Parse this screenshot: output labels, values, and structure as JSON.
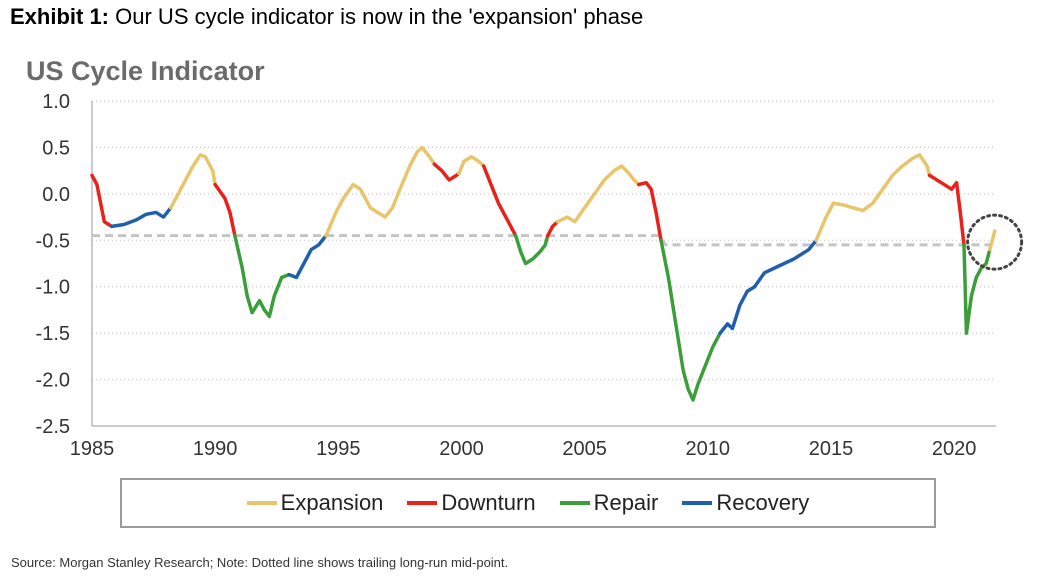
{
  "exhibit": {
    "label": "Exhibit 1:",
    "text": "Our US cycle indicator is now in the 'expansion' phase"
  },
  "source_note": "Source: Morgan Stanley Research; Note: Dotted line shows trailing long-run mid-point.",
  "chart_data": {
    "type": "line",
    "title": "US Cycle Indicator",
    "xlim": [
      1985,
      2021.7
    ],
    "ylim": [
      -2.5,
      1.0
    ],
    "x_ticks": [
      1985,
      1990,
      1995,
      2000,
      2005,
      2010,
      2015,
      2020
    ],
    "x_tick_labels": [
      "1985",
      "1990",
      "1995",
      "2000",
      "2005",
      "2010",
      "2015",
      "2020"
    ],
    "y_ticks": [
      1.0,
      0.5,
      0.0,
      -0.5,
      -1.0,
      -1.5,
      -2.0,
      -2.5
    ],
    "y_tick_labels": [
      "1.0",
      "0.5",
      "0.0",
      "-0.5",
      "-1.0",
      "-1.5",
      "-2.0",
      "-2.5"
    ],
    "grid": "horizontal dotted",
    "legend_position": "bottom",
    "colors": {
      "Expansion": "#e8c56b",
      "Downturn": "#e8221a",
      "Repair": "#3a9e3a",
      "Recovery": "#1f5fae",
      "midpoint": "#c4c4c4",
      "highlight": "#444444"
    },
    "legend": [
      {
        "label": "Expansion",
        "phase": "Expansion"
      },
      {
        "label": "Downturn",
        "phase": "Downturn"
      },
      {
        "label": "Repair",
        "phase": "Repair"
      },
      {
        "label": "Recovery",
        "phase": "Recovery"
      }
    ],
    "series": [
      {
        "phase": "Downturn",
        "points": [
          [
            1985.0,
            0.2
          ],
          [
            1985.2,
            0.1
          ],
          [
            1985.5,
            -0.3
          ],
          [
            1985.8,
            -0.35
          ]
        ]
      },
      {
        "phase": "Recovery",
        "points": [
          [
            1985.8,
            -0.35
          ],
          [
            1986.3,
            -0.33
          ],
          [
            1986.8,
            -0.28
          ],
          [
            1987.2,
            -0.22
          ],
          [
            1987.6,
            -0.2
          ],
          [
            1987.9,
            -0.25
          ],
          [
            1988.2,
            -0.15
          ]
        ]
      },
      {
        "phase": "Expansion",
        "points": [
          [
            1988.2,
            -0.15
          ],
          [
            1988.5,
            0.0
          ],
          [
            1988.8,
            0.15
          ],
          [
            1989.1,
            0.3
          ],
          [
            1989.4,
            0.42
          ],
          [
            1989.6,
            0.4
          ],
          [
            1989.9,
            0.25
          ],
          [
            1990.0,
            0.1
          ]
        ]
      },
      {
        "phase": "Downturn",
        "points": [
          [
            1990.0,
            0.1
          ],
          [
            1990.4,
            -0.05
          ],
          [
            1990.6,
            -0.2
          ],
          [
            1990.8,
            -0.45
          ]
        ]
      },
      {
        "phase": "Repair",
        "points": [
          [
            1990.8,
            -0.45
          ],
          [
            1991.1,
            -0.8
          ],
          [
            1991.3,
            -1.1
          ],
          [
            1991.5,
            -1.28
          ],
          [
            1991.8,
            -1.15
          ],
          [
            1992.0,
            -1.25
          ],
          [
            1992.2,
            -1.32
          ],
          [
            1992.4,
            -1.1
          ],
          [
            1992.7,
            -0.9
          ],
          [
            1993.0,
            -0.87
          ]
        ]
      },
      {
        "phase": "Recovery",
        "points": [
          [
            1993.0,
            -0.87
          ],
          [
            1993.3,
            -0.9
          ],
          [
            1993.6,
            -0.75
          ],
          [
            1993.9,
            -0.6
          ],
          [
            1994.2,
            -0.55
          ],
          [
            1994.5,
            -0.45
          ]
        ]
      },
      {
        "phase": "Expansion",
        "points": [
          [
            1994.5,
            -0.45
          ],
          [
            1994.9,
            -0.2
          ],
          [
            1995.2,
            -0.05
          ],
          [
            1995.6,
            0.1
          ],
          [
            1995.9,
            0.05
          ],
          [
            1996.3,
            -0.15
          ],
          [
            1996.6,
            -0.2
          ],
          [
            1996.9,
            -0.25
          ],
          [
            1997.2,
            -0.15
          ],
          [
            1997.5,
            0.05
          ],
          [
            1997.9,
            0.3
          ],
          [
            1998.2,
            0.45
          ],
          [
            1998.4,
            0.5
          ],
          [
            1998.7,
            0.4
          ],
          [
            1998.9,
            0.32
          ]
        ]
      },
      {
        "phase": "Downturn",
        "points": [
          [
            1998.9,
            0.32
          ],
          [
            1999.2,
            0.25
          ],
          [
            1999.5,
            0.15
          ],
          [
            1999.8,
            0.2
          ],
          [
            1999.9,
            0.22
          ]
        ]
      },
      {
        "phase": "Expansion",
        "points": [
          [
            1999.9,
            0.22
          ],
          [
            2000.1,
            0.35
          ],
          [
            2000.4,
            0.4
          ],
          [
            2000.7,
            0.35
          ],
          [
            2000.9,
            0.3
          ]
        ]
      },
      {
        "phase": "Downturn",
        "points": [
          [
            2000.9,
            0.3
          ],
          [
            2001.2,
            0.1
          ],
          [
            2001.5,
            -0.1
          ],
          [
            2001.8,
            -0.25
          ],
          [
            2002.0,
            -0.35
          ],
          [
            2002.2,
            -0.45
          ]
        ]
      },
      {
        "phase": "Repair",
        "points": [
          [
            2002.2,
            -0.45
          ],
          [
            2002.4,
            -0.62
          ],
          [
            2002.6,
            -0.75
          ],
          [
            2002.9,
            -0.7
          ],
          [
            2003.2,
            -0.62
          ],
          [
            2003.4,
            -0.55
          ],
          [
            2003.5,
            -0.45
          ]
        ]
      },
      {
        "phase": "Downturn",
        "points": [
          [
            2003.5,
            -0.45
          ],
          [
            2003.7,
            -0.35
          ],
          [
            2003.9,
            -0.3
          ]
        ]
      },
      {
        "phase": "Expansion",
        "points": [
          [
            2003.9,
            -0.3
          ],
          [
            2004.3,
            -0.25
          ],
          [
            2004.6,
            -0.3
          ],
          [
            2005.0,
            -0.15
          ],
          [
            2005.4,
            0.0
          ],
          [
            2005.8,
            0.15
          ],
          [
            2006.2,
            0.25
          ],
          [
            2006.5,
            0.3
          ],
          [
            2006.8,
            0.22
          ],
          [
            2007.0,
            0.15
          ],
          [
            2007.2,
            0.1
          ]
        ]
      },
      {
        "phase": "Downturn",
        "points": [
          [
            2007.2,
            0.1
          ],
          [
            2007.5,
            0.12
          ],
          [
            2007.7,
            0.05
          ],
          [
            2007.9,
            -0.2
          ],
          [
            2008.1,
            -0.5
          ]
        ]
      },
      {
        "phase": "Repair",
        "points": [
          [
            2008.1,
            -0.5
          ],
          [
            2008.4,
            -0.9
          ],
          [
            2008.7,
            -1.4
          ],
          [
            2009.0,
            -1.9
          ],
          [
            2009.2,
            -2.1
          ],
          [
            2009.4,
            -2.22
          ],
          [
            2009.6,
            -2.05
          ],
          [
            2009.9,
            -1.85
          ],
          [
            2010.2,
            -1.65
          ],
          [
            2010.5,
            -1.5
          ]
        ]
      },
      {
        "phase": "Recovery",
        "points": [
          [
            2010.5,
            -1.5
          ],
          [
            2010.8,
            -1.4
          ],
          [
            2011.0,
            -1.45
          ],
          [
            2011.3,
            -1.2
          ],
          [
            2011.6,
            -1.05
          ],
          [
            2011.9,
            -1.0
          ],
          [
            2012.3,
            -0.85
          ],
          [
            2012.7,
            -0.8
          ],
          [
            2013.1,
            -0.75
          ],
          [
            2013.5,
            -0.7
          ],
          [
            2013.8,
            -0.65
          ],
          [
            2014.1,
            -0.6
          ],
          [
            2014.4,
            -0.5
          ]
        ]
      },
      {
        "phase": "Expansion",
        "points": [
          [
            2014.4,
            -0.5
          ],
          [
            2014.8,
            -0.25
          ],
          [
            2015.1,
            -0.1
          ],
          [
            2015.5,
            -0.12
          ],
          [
            2015.9,
            -0.15
          ],
          [
            2016.3,
            -0.18
          ],
          [
            2016.7,
            -0.1
          ],
          [
            2017.1,
            0.05
          ],
          [
            2017.5,
            0.2
          ],
          [
            2017.9,
            0.3
          ],
          [
            2018.3,
            0.38
          ],
          [
            2018.6,
            0.42
          ],
          [
            2018.9,
            0.3
          ],
          [
            2019.0,
            0.2
          ]
        ]
      },
      {
        "phase": "Downturn",
        "points": [
          [
            2019.0,
            0.2
          ],
          [
            2019.3,
            0.15
          ],
          [
            2019.6,
            0.1
          ],
          [
            2019.9,
            0.05
          ],
          [
            2020.1,
            0.12
          ],
          [
            2020.25,
            -0.2
          ],
          [
            2020.4,
            -0.55
          ]
        ]
      },
      {
        "phase": "Repair",
        "points": [
          [
            2020.4,
            -0.55
          ],
          [
            2020.5,
            -1.5
          ],
          [
            2020.7,
            -1.1
          ],
          [
            2020.9,
            -0.9
          ],
          [
            2021.1,
            -0.8
          ],
          [
            2021.3,
            -0.75
          ],
          [
            2021.45,
            -0.6
          ]
        ]
      },
      {
        "phase": "Expansion",
        "points": [
          [
            2021.45,
            -0.6
          ],
          [
            2021.55,
            -0.5
          ],
          [
            2021.65,
            -0.4
          ]
        ]
      }
    ],
    "midpoint": [
      [
        1985.0,
        -0.45
      ],
      [
        2008.0,
        -0.45
      ],
      [
        2008.3,
        -0.55
      ],
      [
        2021.5,
        -0.55
      ]
    ],
    "highlight_circle": {
      "x": 2021.4,
      "y": -0.52
    }
  }
}
